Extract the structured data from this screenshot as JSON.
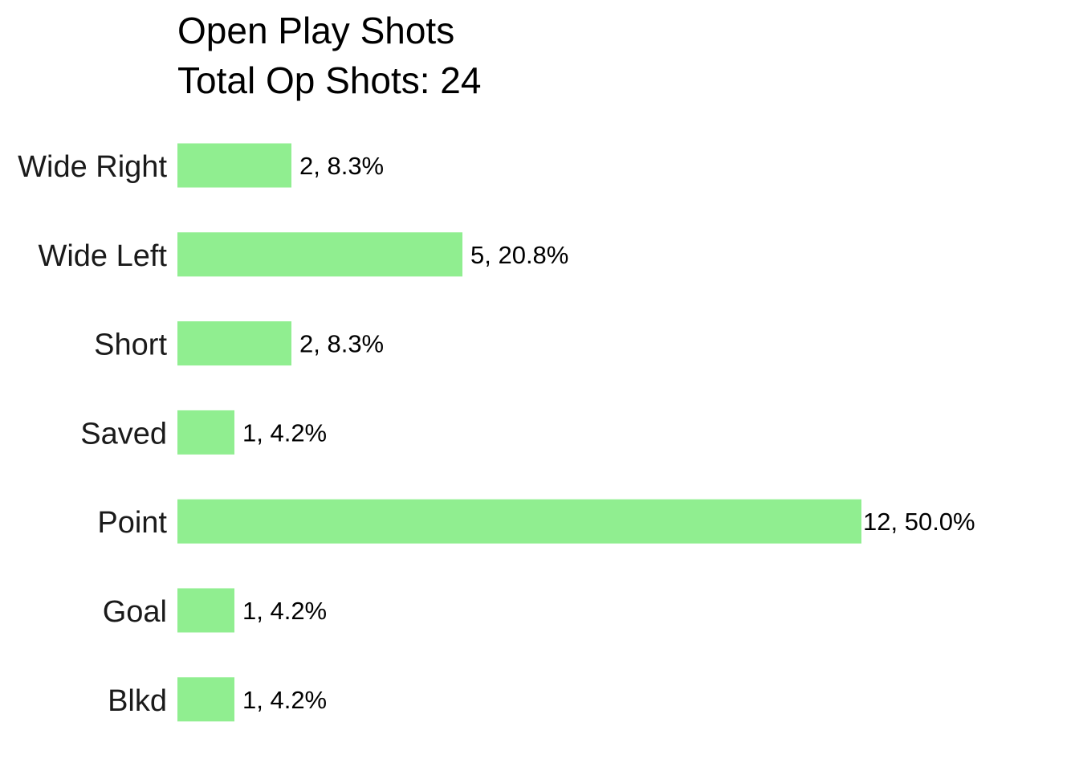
{
  "chart_data": {
    "type": "bar",
    "orientation": "horizontal",
    "title": "Open Play Shots",
    "subtitle": "Total Op Shots: 24",
    "categories": [
      "Wide Right",
      "Wide Left",
      "Short",
      "Saved",
      "Point",
      "Goal",
      "Blkd"
    ],
    "values": [
      2,
      5,
      2,
      1,
      12,
      1,
      1
    ],
    "data_labels": [
      "2, 8.3%",
      "5, 20.8%",
      "2, 8.3%",
      "1, 4.2%",
      "12, 50.0%",
      "1, 4.2%",
      "1, 4.2%"
    ],
    "xlabel": "",
    "ylabel": "",
    "xlim": [
      0,
      12
    ],
    "grid": false,
    "bar_color": "#90EE90"
  }
}
